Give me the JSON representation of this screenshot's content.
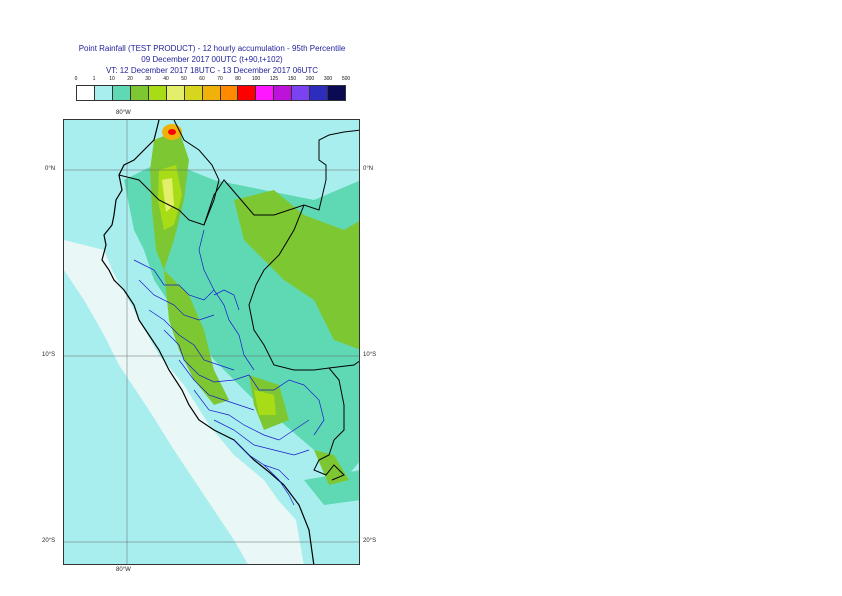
{
  "header": {
    "title": "Point Rainfall (TEST PRODUCT) - 12 hourly accumulation - 95th Percentile",
    "run": "09 December 2017 00UTC (t+90,t+102)",
    "valid": "VT: 12 December 2017 18UTC - 13 December 2017 06UTC"
  },
  "legend": {
    "labels": [
      "0",
      "1",
      "10",
      "20",
      "30",
      "40",
      "50",
      "60",
      "70",
      "80",
      "100",
      "125",
      "150",
      "200",
      "300",
      "500"
    ],
    "colors": [
      "#ffffff",
      "#a8eeee",
      "#5fd9b4",
      "#7dc832",
      "#a7dc17",
      "#e3ef6a",
      "#d6d61f",
      "#f0b20a",
      "#ff8a00",
      "#ff0000",
      "#ff18ff",
      "#bd12d9",
      "#7a42f0",
      "#2d2dbd",
      "#0a0a55"
    ]
  },
  "axes": {
    "lon_top": "80°W",
    "lon_bottom": "80°W",
    "lat_labels": [
      "0°N",
      "10°S",
      "20°S"
    ]
  },
  "colors": {
    "land_border": "#000000",
    "region_border": "#0000cc",
    "gridline": "#555555"
  }
}
